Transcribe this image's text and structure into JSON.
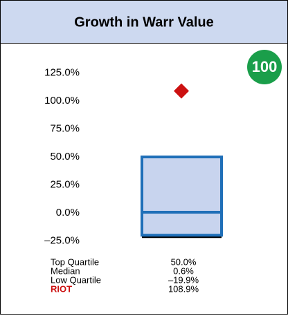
{
  "chart_data": {
    "type": "box",
    "title": "Growth in Warr Value",
    "badge": 100,
    "categories": [
      "Top Quartile",
      "Median",
      "Low Quartile",
      "RIOT"
    ],
    "values": [
      50,
      0.6,
      -19.9,
      108.9
    ],
    "value_labels": [
      "50.0%",
      "0.6%",
      "–19.9%",
      "108.9%"
    ],
    "color": "#1f6fb8",
    "fill": "#c8d4ee",
    "marker_color": "#cc1111",
    "ylim": [
      -25,
      125
    ],
    "yticks": [
      {
        "value": 125,
        "label": "125.0%"
      },
      {
        "value": 100,
        "label": "100.0%"
      },
      {
        "value": 75,
        "label": "75.0%"
      },
      {
        "value": 50,
        "label": "50.0%"
      },
      {
        "value": 25,
        "label": "25.0%"
      },
      {
        "value": 0,
        "label": "0.0%"
      },
      {
        "value": -25,
        "label": "–25.0%"
      }
    ]
  }
}
